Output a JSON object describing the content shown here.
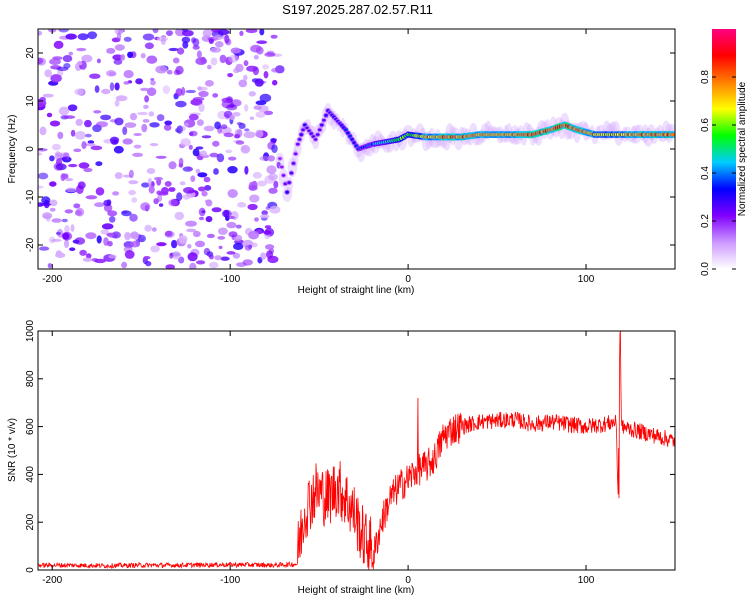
{
  "title": "S197.2025.287.02.57.R11",
  "chart_data": [
    {
      "type": "heatmap",
      "name": "spectrogram",
      "xlabel": "Height of straight line (km)",
      "ylabel": "Frequency (Hz)",
      "xlim": [
        -208,
        150
      ],
      "ylim": [
        -25,
        25
      ],
      "xticks": [
        -200,
        -100,
        0,
        100
      ],
      "yticks": [
        -20,
        -10,
        0,
        10,
        20
      ],
      "colorbar": {
        "label": "Normalized spectral amplitude",
        "range": [
          0,
          1
        ],
        "ticks": [
          "0.0",
          "0.2",
          "0.4",
          "0.6",
          "0.8"
        ],
        "tick_values": [
          0,
          0.2,
          0.4,
          0.6,
          0.8
        ],
        "colors": [
          "#ffffff",
          "#cc99ff",
          "#8000ff",
          "#0000ff",
          "#00ccff",
          "#00ff00",
          "#ffff00",
          "#ff8000",
          "#ff0000",
          "#ff0080"
        ]
      },
      "noise_region_x": [
        -208,
        -72
      ],
      "signal_ridge": [
        {
          "x": -72,
          "f": -2,
          "amp": 0.2
        },
        {
          "x": -68,
          "f": -9,
          "amp": 0.3
        },
        {
          "x": -62,
          "f": 1,
          "amp": 0.25
        },
        {
          "x": -58,
          "f": 5,
          "amp": 0.3
        },
        {
          "x": -52,
          "f": 2,
          "amp": 0.25
        },
        {
          "x": -45,
          "f": 8,
          "amp": 0.3
        },
        {
          "x": -35,
          "f": 4,
          "amp": 0.35
        },
        {
          "x": -28,
          "f": 0,
          "amp": 0.35
        },
        {
          "x": -20,
          "f": 1,
          "amp": 0.4
        },
        {
          "x": -12,
          "f": 1.5,
          "amp": 0.5
        },
        {
          "x": -5,
          "f": 2,
          "amp": 0.6
        },
        {
          "x": 0,
          "f": 3,
          "amp": 0.6
        },
        {
          "x": 10,
          "f": 2.5,
          "amp": 0.75
        },
        {
          "x": 20,
          "f": 2.5,
          "amp": 0.85
        },
        {
          "x": 30,
          "f": 2.5,
          "amp": 0.85
        },
        {
          "x": 40,
          "f": 3,
          "amp": 0.8
        },
        {
          "x": 50,
          "f": 3,
          "amp": 0.75
        },
        {
          "x": 60,
          "f": 3,
          "amp": 0.85
        },
        {
          "x": 70,
          "f": 3,
          "amp": 0.9
        },
        {
          "x": 80,
          "f": 4,
          "amp": 0.85
        },
        {
          "x": 88,
          "f": 5,
          "amp": 0.9
        },
        {
          "x": 95,
          "f": 4,
          "amp": 0.85
        },
        {
          "x": 105,
          "f": 3,
          "amp": 0.75
        },
        {
          "x": 115,
          "f": 3,
          "amp": 0.7
        },
        {
          "x": 125,
          "f": 3,
          "amp": 0.85
        },
        {
          "x": 135,
          "f": 3,
          "amp": 0.85
        },
        {
          "x": 145,
          "f": 3,
          "amp": 0.85
        },
        {
          "x": 150,
          "f": 3,
          "amp": 0.85
        }
      ]
    },
    {
      "type": "line",
      "name": "snr",
      "xlabel": "Height of straight line (km)",
      "ylabel": "SNR (10 * v/v)",
      "xlim": [
        -208,
        150
      ],
      "ylim": [
        0,
        1000
      ],
      "xticks": [
        -200,
        -100,
        0,
        100
      ],
      "yticks": [
        0,
        200,
        400,
        600,
        800,
        1000
      ],
      "color": "#ff0000",
      "series": [
        {
          "name": "SNR",
          "x": [
            -208,
            -190,
            -170,
            -150,
            -130,
            -110,
            -90,
            -75,
            -62,
            -58,
            -52,
            -45,
            -40,
            -35,
            -30,
            -25,
            -20,
            -15,
            -10,
            -5,
            0,
            5,
            10,
            15,
            20,
            25,
            30,
            40,
            50,
            60,
            70,
            80,
            90,
            100,
            110,
            117,
            118,
            119,
            120,
            125,
            130,
            140,
            150
          ],
          "y": [
            20,
            20,
            18,
            20,
            20,
            22,
            22,
            20,
            25,
            200,
            280,
            250,
            300,
            250,
            180,
            80,
            40,
            200,
            300,
            350,
            380,
            420,
            430,
            470,
            560,
            590,
            600,
            620,
            625,
            630,
            610,
            620,
            610,
            600,
            610,
            620,
            300,
            1000,
            600,
            590,
            580,
            560,
            540
          ]
        }
      ]
    }
  ]
}
